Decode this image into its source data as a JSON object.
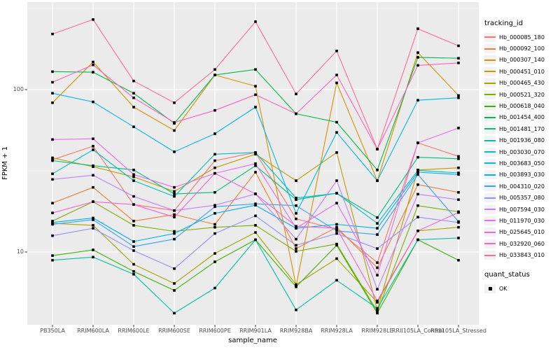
{
  "figure": {
    "background": "#FFFFFF",
    "panel_background": "#EBEBEB",
    "gridline_color": "#FFFFFF",
    "tick_mark_color": "#333333",
    "axis_text_color": "#4D4D4D",
    "point_color": "#000000",
    "legend_key_background": "#F2F2F2"
  },
  "axes": {
    "x_title": "sample_name",
    "y_title": "FPKM + 1",
    "y_tick_labels": [
      "100",
      "10"
    ],
    "y_tick_values": [
      100,
      10
    ],
    "y_minor_values": [
      316.23,
      31.62
    ]
  },
  "legend": {
    "tracking_title": "tracking_id",
    "quant_title": "quant_status",
    "quant_items": [
      "OK"
    ]
  },
  "chart_data": {
    "type": "line",
    "title": "",
    "xlabel": "sample_name",
    "ylabel": "FPKM + 1",
    "y_scale": "log10",
    "ylim": [
      3.5,
      320
    ],
    "grid": "on",
    "legend_position": "right",
    "point_shape": "filled black square (quant_status = OK)",
    "categories": [
      "PB350LA",
      "RRIM600LA",
      "RRIM600LE",
      "RRIM600SE",
      "RRIM600PE",
      "RRIM901LA",
      "RRIM928BA",
      "RRIM928LA",
      "RRIM928LE",
      "RRII105LA_Control",
      "RRII105LA_Stressed"
    ],
    "series": [
      {
        "name": "Hb_000085_180",
        "color": "#F8766D",
        "values": [
          37,
          44.8,
          19.6,
          18,
          36.5,
          41,
          16,
          13.8,
          8.6,
          47,
          38.8
        ]
      },
      {
        "name": "Hb_000092_100",
        "color": "#EA8331",
        "values": [
          20,
          25,
          15.5,
          17,
          14.8,
          31,
          10.5,
          14.2,
          8,
          26,
          23.3
        ]
      },
      {
        "name": "Hb_000307_140",
        "color": "#D89000",
        "values": [
          83,
          148,
          78,
          56,
          123,
          105,
          6.2,
          110,
          27.5,
          169,
          92
        ]
      },
      {
        "name": "Hb_000451_010",
        "color": "#C09B00",
        "values": [
          38,
          33.5,
          29,
          23.6,
          33,
          40,
          27.5,
          41,
          4.4,
          32,
          33
        ]
      },
      {
        "name": "Hb_000465_430",
        "color": "#A3A500",
        "values": [
          15,
          14.6,
          8.4,
          6.4,
          9.8,
          13.2,
          6.3,
          9.1,
          4.9,
          13.5,
          14.2
        ]
      },
      {
        "name": "Hb_000521_320",
        "color": "#7CAE00",
        "values": [
          15.5,
          20.4,
          14.6,
          13.4,
          14.2,
          14.6,
          10.1,
          11.2,
          4.3,
          19.3,
          17.7
        ]
      },
      {
        "name": "Hb_000618_040",
        "color": "#39B600",
        "values": [
          9.5,
          10.3,
          7.6,
          5.8,
          8.7,
          11.9,
          6.1,
          11,
          4.2,
          11.9,
          8.9
        ]
      },
      {
        "name": "Hb_001454_400",
        "color": "#00BB4E",
        "values": [
          129,
          128,
          95,
          62,
          123,
          133,
          71,
          63,
          32,
          158,
          156
        ]
      },
      {
        "name": "Hb_001481_170",
        "color": "#00BF7D",
        "values": [
          36.5,
          34,
          32,
          22.8,
          23.3,
          34,
          21,
          23,
          16.3,
          38.3,
          37.5
        ]
      },
      {
        "name": "Hb_001936_080",
        "color": "#00C1A3",
        "values": [
          8.9,
          9.3,
          7.3,
          4.2,
          6,
          11.9,
          4.4,
          6.7,
          4.5,
          11.9,
          12.2
        ]
      },
      {
        "name": "Hb_003030_070",
        "color": "#00BFC4",
        "values": [
          30.3,
          42.6,
          27.5,
          22,
          40,
          41,
          21.5,
          23,
          15,
          31.8,
          30.7
        ]
      },
      {
        "name": "Hb_003683_050",
        "color": "#00BAE0",
        "values": [
          95,
          84,
          59,
          41.4,
          53.5,
          78,
          17.3,
          54.5,
          27.5,
          86,
          89
        ]
      },
      {
        "name": "Hb_003893_030",
        "color": "#00B0F6",
        "values": [
          15.2,
          16.2,
          11.6,
          13,
          17.3,
          19.4,
          14,
          14.8,
          14,
          31,
          30
        ]
      },
      {
        "name": "Hb_004310_020",
        "color": "#35A2FF",
        "values": [
          14.8,
          15.8,
          10.8,
          12,
          19,
          19.8,
          19.3,
          13.5,
          12.8,
          30,
          15.4
        ]
      },
      {
        "name": "Hb_005357_080",
        "color": "#9590FF",
        "values": [
          12.6,
          14,
          10.2,
          7.9,
          13,
          16.7,
          11,
          13,
          10.5,
          16.4,
          15.2
        ]
      },
      {
        "name": "Hb_007594_030",
        "color": "#C77CFF",
        "values": [
          28,
          29.7,
          22,
          18,
          19.4,
          22.8,
          12,
          27.5,
          5.9,
          22.7,
          21
        ]
      },
      {
        "name": "Hb_011970_030",
        "color": "#E76BF3",
        "values": [
          49.3,
          49.8,
          30,
          25,
          30.5,
          35,
          14,
          20,
          7.2,
          47,
          58
        ]
      },
      {
        "name": "Hb_025645_010",
        "color": "#FA62DB",
        "values": [
          17.4,
          20.4,
          19.6,
          16.4,
          30.5,
          22.8,
          14.4,
          14,
          5,
          13.5,
          17.5
        ]
      },
      {
        "name": "Hb_032920_060",
        "color": "#FF62BC",
        "values": [
          111,
          142,
          89,
          62.7,
          74.5,
          93,
          71,
          123,
          43,
          141,
          146
        ]
      },
      {
        "name": "Hb_033843_010",
        "color": "#FF6A98",
        "values": [
          220,
          270,
          113,
          83,
          133,
          262,
          94,
          173,
          43,
          237,
          186
        ]
      }
    ]
  }
}
